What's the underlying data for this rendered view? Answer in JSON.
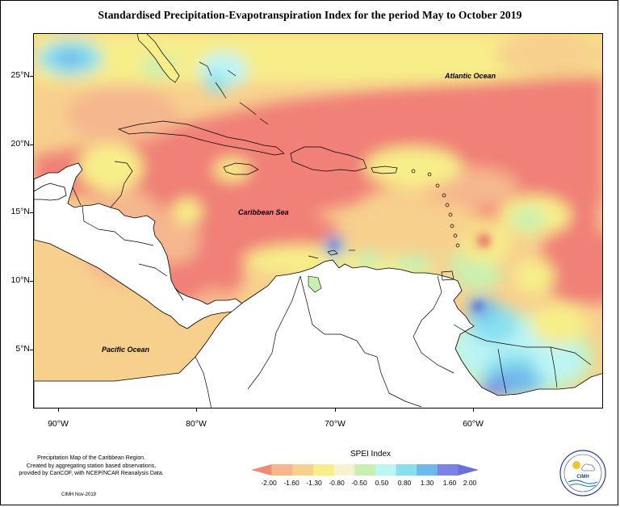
{
  "title": "Standardised Precipitation-Evapotranspiration Index for the period May to October 2019",
  "map": {
    "region": "Caribbean",
    "latitude_labels": [
      "25°N",
      "20°N",
      "15°N",
      "10°N",
      "5°N"
    ],
    "longitude_labels": [
      "90°W",
      "80°W",
      "70°W",
      "60°W"
    ],
    "place_labels": {
      "atlantic": "Atlantic Ocean",
      "caribbean": "Caribbean Sea",
      "pacific": "Pacific Ocean"
    }
  },
  "legend": {
    "title": "SPEI Index",
    "labels": [
      "-2.00",
      "-1.60",
      "-1.30",
      "-0.80",
      "-0.50",
      "0.50",
      "0.80",
      "1.30",
      "1.60",
      "2.00"
    ],
    "colors": [
      "#f08a72",
      "#f5b78d",
      "#f7d08d",
      "#f7ee8a",
      "#f4f2cf",
      "#c9f0b0",
      "#bdf4f4",
      "#88e0ee",
      "#6fb8ec",
      "#7a84e6",
      "#6a70d8"
    ]
  },
  "footer": {
    "line1": "Precipitation Map of the Caribbean Region.",
    "line2": "Created by aggregating station based observations,",
    "line3": "provided by CariCOF, with NCEP/NCAR Reanalysis Data.",
    "credit": "CIMH Nov-2019"
  },
  "logo": {
    "text": "CIMH"
  }
}
